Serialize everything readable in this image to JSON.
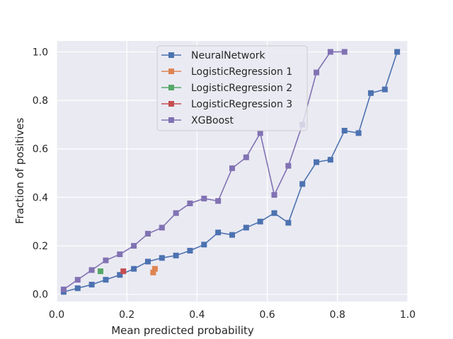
{
  "chart_data": {
    "type": "line",
    "xlabel": "Mean predicted probability",
    "ylabel": "Fraction of positives",
    "xlim": [
      0.0,
      1.0
    ],
    "ylim": [
      -0.03,
      1.045
    ],
    "x_ticks": [
      "0.0",
      "0.2",
      "0.4",
      "0.6",
      "0.8",
      "1.0"
    ],
    "y_ticks": [
      "0.0",
      "0.2",
      "0.4",
      "0.6",
      "0.8",
      "1.0"
    ],
    "grid": true,
    "legend_position": "top-center",
    "series": [
      {
        "name": "NeuralNetwork",
        "color": "#4c72b0",
        "marker": "square",
        "points": [
          [
            0.02,
            0.01
          ],
          [
            0.06,
            0.025
          ],
          [
            0.1,
            0.04
          ],
          [
            0.14,
            0.06
          ],
          [
            0.18,
            0.08
          ],
          [
            0.22,
            0.105
          ],
          [
            0.26,
            0.135
          ],
          [
            0.3,
            0.15
          ],
          [
            0.34,
            0.16
          ],
          [
            0.38,
            0.18
          ],
          [
            0.42,
            0.205
          ],
          [
            0.46,
            0.255
          ],
          [
            0.5,
            0.245
          ],
          [
            0.54,
            0.275
          ],
          [
            0.58,
            0.3
          ],
          [
            0.62,
            0.335
          ],
          [
            0.66,
            0.295
          ],
          [
            0.7,
            0.455
          ],
          [
            0.74,
            0.545
          ],
          [
            0.78,
            0.555
          ],
          [
            0.82,
            0.675
          ],
          [
            0.86,
            0.665
          ],
          [
            0.895,
            0.83
          ],
          [
            0.935,
            0.845
          ],
          [
            0.97,
            1.0
          ]
        ]
      },
      {
        "name": "LogisticRegression 1",
        "color": "#dd8452",
        "marker": "square",
        "points": [
          [
            0.275,
            0.09
          ],
          [
            0.28,
            0.105
          ]
        ]
      },
      {
        "name": "LogisticRegression 2",
        "color": "#55a868",
        "marker": "square",
        "points": [
          [
            0.125,
            0.095
          ]
        ]
      },
      {
        "name": "LogisticRegression 3",
        "color": "#c44e52",
        "marker": "square",
        "points": [
          [
            0.19,
            0.095
          ]
        ]
      },
      {
        "name": "XGBoost",
        "color": "#8172b3",
        "marker": "square",
        "points": [
          [
            0.02,
            0.02
          ],
          [
            0.06,
            0.06
          ],
          [
            0.1,
            0.1
          ],
          [
            0.14,
            0.14
          ],
          [
            0.18,
            0.165
          ],
          [
            0.22,
            0.2
          ],
          [
            0.26,
            0.25
          ],
          [
            0.3,
            0.275
          ],
          [
            0.34,
            0.335
          ],
          [
            0.38,
            0.375
          ],
          [
            0.42,
            0.395
          ],
          [
            0.46,
            0.385
          ],
          [
            0.5,
            0.52
          ],
          [
            0.54,
            0.565
          ],
          [
            0.58,
            0.665
          ],
          [
            0.62,
            0.41
          ],
          [
            0.66,
            0.53
          ],
          [
            0.7,
            0.7
          ],
          [
            0.74,
            0.915
          ],
          [
            0.78,
            1.0
          ],
          [
            0.82,
            1.0
          ]
        ]
      }
    ]
  }
}
